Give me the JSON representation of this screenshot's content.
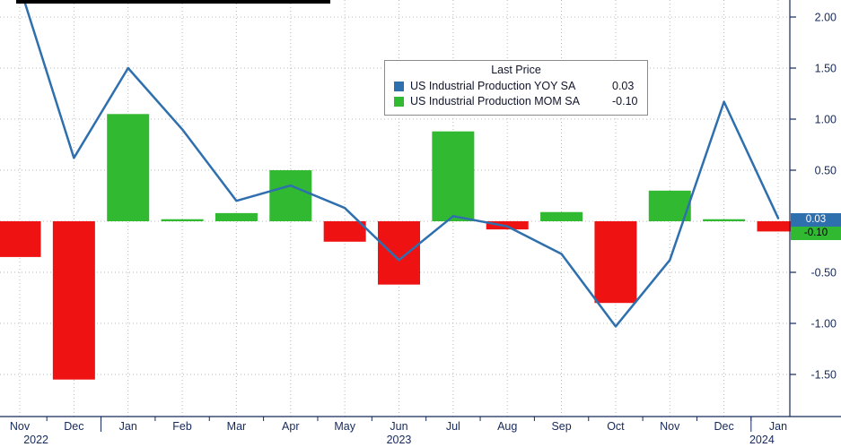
{
  "colors": {
    "line": "#2e6fae",
    "bar_positive": "#32b932",
    "bar_negative": "#ee1212",
    "axis_text": "#16295b",
    "axis_line": "#16295b",
    "grid": "#b8b8b8",
    "price_label_yoy_bg": "#2e6fae",
    "price_label_yoy_text": "#ffffff",
    "price_label_mom_bg": "#32b932",
    "price_label_mom_text": "#000000"
  },
  "legend": {
    "title": "Last Price",
    "items": [
      {
        "label": "US Industrial Production YOY SA",
        "value": "0.03",
        "color": "#2e6fae"
      },
      {
        "label": "US Industrial Production MOM SA",
        "value": "-0.10",
        "color": "#32b932"
      }
    ]
  },
  "last_price": {
    "yoy": "0.03",
    "mom": "-0.10"
  },
  "chart_data": {
    "type": "combo",
    "title": "Last Price",
    "categories": [
      "Nov",
      "Dec",
      "Jan",
      "Feb",
      "Mar",
      "Apr",
      "May",
      "Jun",
      "Jul",
      "Aug",
      "Sep",
      "Oct",
      "Nov",
      "Dec",
      "Jan"
    ],
    "series": [
      {
        "name": "US Industrial Production YOY SA",
        "type": "line",
        "values": [
          2.3,
          0.62,
          1.5,
          0.9,
          0.2,
          0.35,
          0.13,
          -0.38,
          0.05,
          -0.05,
          -0.32,
          -1.03,
          -0.38,
          1.17,
          0.03
        ]
      },
      {
        "name": "US Industrial Production MOM SA",
        "type": "bar",
        "values": [
          -0.35,
          -1.55,
          1.05,
          0.02,
          0.08,
          0.5,
          -0.2,
          -0.62,
          0.88,
          -0.08,
          0.09,
          -0.8,
          0.3,
          0.02,
          -0.1
        ]
      }
    ],
    "y_axis": {
      "min": -1.75,
      "max": 2.1,
      "tick_step": 0.5,
      "tick_values": [
        2.0,
        1.5,
        1.0,
        0.5,
        -0.5,
        -1.0,
        -1.5
      ],
      "tick_labels": [
        "2.00",
        "1.50",
        "1.00",
        "0.50",
        "-0.50",
        "-1.00",
        "-1.50"
      ],
      "grid_values": [
        2.0,
        1.5,
        1.0,
        0.5,
        0.0,
        -0.5,
        -1.0,
        -1.5
      ],
      "side": "right",
      "grid": "dotted"
    },
    "x_axis": {
      "year_labels": [
        {
          "label": "2022",
          "index": 0.3
        },
        {
          "label": "2023",
          "index": 7
        },
        {
          "label": "2024",
          "index": 13.7
        }
      ],
      "year_dividers": [
        1.5,
        13.5
      ]
    },
    "legend_position": "top-center"
  }
}
